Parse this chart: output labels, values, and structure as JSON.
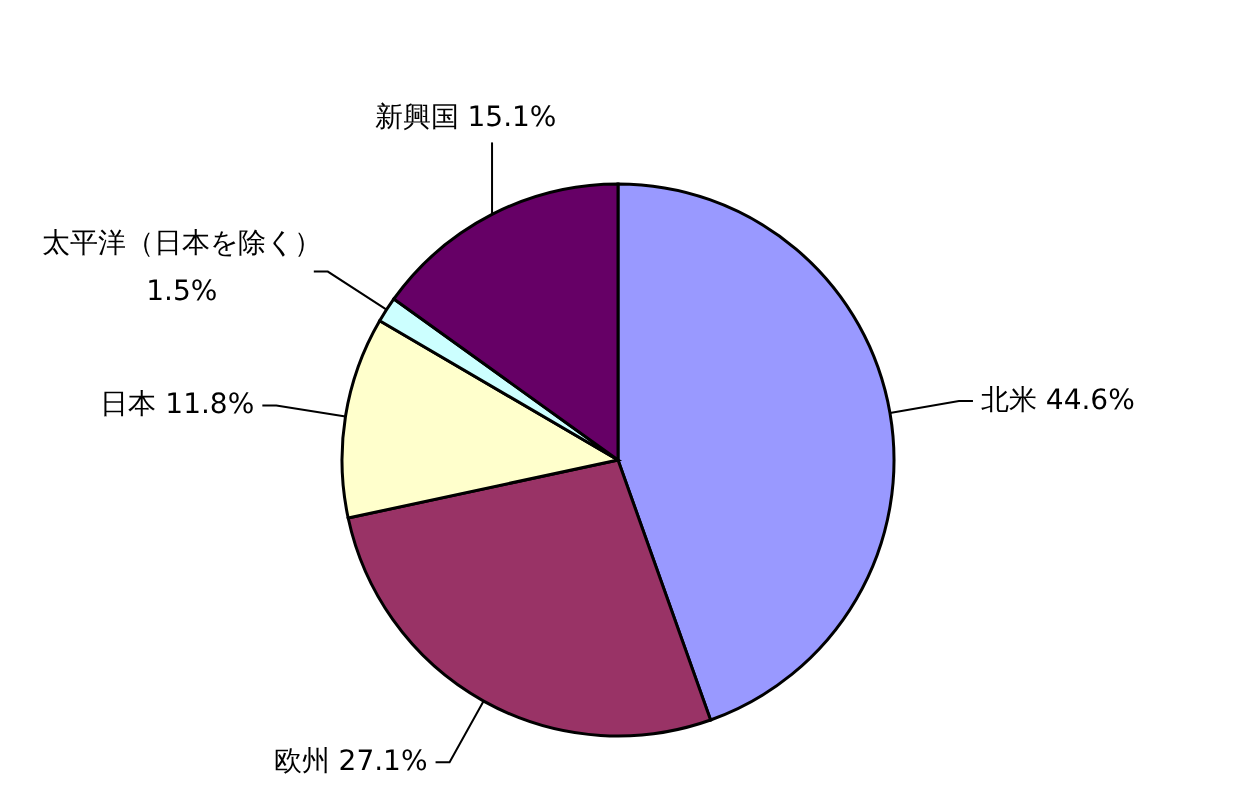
{
  "chart_data": {
    "type": "pie",
    "categories": [
      "北米",
      "欧州",
      "日本",
      "太平洋（日本を除く）",
      "新興国"
    ],
    "values": [
      44.6,
      27.1,
      11.8,
      1.5,
      15.1
    ],
    "colors": [
      "#9999ff",
      "#993366",
      "#ffffcc",
      "#ccffff",
      "#660066"
    ],
    "value_labels": [
      "44.6%",
      "27.1%",
      "11.8%",
      "1.5%",
      "15.1%"
    ]
  }
}
